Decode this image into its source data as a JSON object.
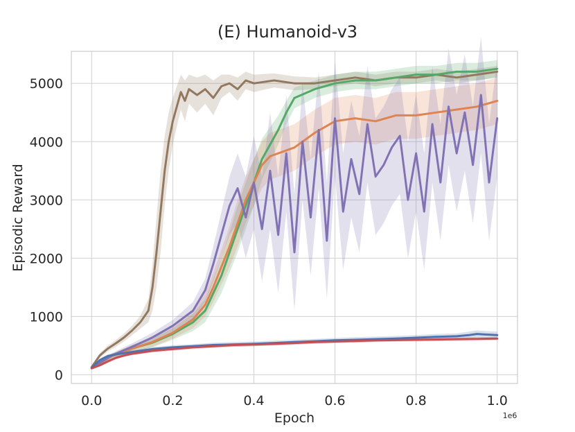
{
  "chart_data": {
    "type": "line",
    "title": "(E) Humanoid-v3",
    "xlabel": "Epoch",
    "ylabel": "Episodic Reward",
    "x_offset_label": "1e6",
    "xlim": [
      -0.05,
      1.05
    ],
    "ylim": [
      -150,
      5550
    ],
    "x_ticks": [
      0.0,
      0.2,
      0.4,
      0.6,
      0.8,
      1.0
    ],
    "x_tick_labels": [
      "0.0",
      "0.2",
      "0.4",
      "0.6",
      "0.8",
      "1.0"
    ],
    "y_ticks": [
      0,
      1000,
      2000,
      3000,
      4000,
      5000
    ],
    "y_tick_labels": [
      "0",
      "1000",
      "2000",
      "3000",
      "4000",
      "5000"
    ],
    "grid": true,
    "legend": "none",
    "series": [
      {
        "color": "#937860",
        "x": [
          0,
          0.02,
          0.04,
          0.06,
          0.08,
          0.1,
          0.12,
          0.14,
          0.15,
          0.16,
          0.17,
          0.18,
          0.19,
          0.2,
          0.21,
          0.22,
          0.23,
          0.24,
          0.26,
          0.28,
          0.3,
          0.32,
          0.34,
          0.36,
          0.38,
          0.4,
          0.45,
          0.5,
          0.55,
          0.6,
          0.65,
          0.7,
          0.75,
          0.8,
          0.85,
          0.9,
          0.95,
          1.0
        ],
        "y": [
          130,
          330,
          450,
          540,
          640,
          760,
          900,
          1100,
          1500,
          2100,
          2800,
          3500,
          4000,
          4350,
          4600,
          4850,
          4700,
          4900,
          4800,
          4900,
          4750,
          4950,
          5000,
          4900,
          5050,
          5000,
          5050,
          5000,
          5000,
          5050,
          5100,
          5050,
          5100,
          5100,
          5150,
          5100,
          5150,
          5200
        ],
        "spread": [
          20,
          40,
          50,
          60,
          70,
          80,
          110,
          200,
          400,
          600,
          700,
          600,
          500,
          400,
          350,
          300,
          350,
          250,
          300,
          250,
          300,
          200,
          150,
          200,
          150,
          150,
          120,
          120,
          100,
          100,
          100,
          100,
          100,
          100,
          100,
          100,
          100,
          100
        ]
      },
      {
        "color": "#55a868",
        "x": [
          0,
          0.05,
          0.1,
          0.15,
          0.2,
          0.25,
          0.28,
          0.3,
          0.32,
          0.34,
          0.36,
          0.38,
          0.4,
          0.42,
          0.44,
          0.46,
          0.48,
          0.5,
          0.55,
          0.6,
          0.65,
          0.7,
          0.75,
          0.8,
          0.85,
          0.9,
          0.95,
          1.0
        ],
        "y": [
          120,
          320,
          450,
          550,
          700,
          900,
          1100,
          1400,
          1700,
          2100,
          2500,
          2900,
          3300,
          3700,
          3950,
          4200,
          4500,
          4750,
          4900,
          5000,
          5050,
          5050,
          5100,
          5150,
          5150,
          5200,
          5200,
          5250
        ],
        "spread": [
          20,
          40,
          60,
          80,
          100,
          150,
          200,
          250,
          300,
          350,
          400,
          400,
          400,
          350,
          300,
          250,
          200,
          180,
          150,
          150,
          150,
          150,
          150,
          150,
          150,
          150,
          150,
          150
        ]
      },
      {
        "color": "#dd8452",
        "x": [
          0,
          0.05,
          0.1,
          0.15,
          0.2,
          0.25,
          0.28,
          0.3,
          0.32,
          0.34,
          0.36,
          0.38,
          0.4,
          0.42,
          0.44,
          0.46,
          0.5,
          0.55,
          0.6,
          0.65,
          0.7,
          0.75,
          0.8,
          0.85,
          0.9,
          0.95,
          1.0
        ],
        "y": [
          120,
          320,
          450,
          560,
          720,
          950,
          1200,
          1500,
          1850,
          2200,
          2600,
          3000,
          3300,
          3600,
          3750,
          3800,
          3900,
          4150,
          4350,
          4400,
          4350,
          4450,
          4450,
          4500,
          4550,
          4600,
          4700
        ],
        "spread": [
          20,
          40,
          60,
          80,
          100,
          150,
          200,
          250,
          300,
          350,
          400,
          400,
          400,
          400,
          400,
          400,
          400,
          400,
          400,
          400,
          400,
          400,
          400,
          400,
          400,
          400,
          400
        ]
      },
      {
        "color": "#8172b3",
        "x": [
          0,
          0.05,
          0.1,
          0.15,
          0.2,
          0.25,
          0.28,
          0.3,
          0.32,
          0.34,
          0.36,
          0.38,
          0.4,
          0.42,
          0.44,
          0.46,
          0.48,
          0.5,
          0.52,
          0.54,
          0.56,
          0.58,
          0.6,
          0.62,
          0.64,
          0.66,
          0.68,
          0.7,
          0.72,
          0.74,
          0.76,
          0.78,
          0.8,
          0.82,
          0.84,
          0.86,
          0.88,
          0.9,
          0.92,
          0.94,
          0.96,
          0.98,
          1.0
        ],
        "y": [
          120,
          330,
          480,
          640,
          840,
          1100,
          1450,
          1900,
          2400,
          2900,
          3200,
          2700,
          3300,
          2500,
          3500,
          2400,
          3800,
          2100,
          4000,
          2700,
          4200,
          2300,
          4400,
          2800,
          3700,
          3100,
          4300,
          3400,
          3600,
          3900,
          4100,
          3000,
          3800,
          2800,
          4300,
          3300,
          4600,
          3800,
          4500,
          3600,
          4800,
          3300,
          4400
        ],
        "spread": [
          20,
          40,
          60,
          80,
          100,
          150,
          200,
          300,
          400,
          500,
          600,
          700,
          800,
          900,
          1000,
          1000,
          1000,
          1000,
          1000,
          1000,
          1000,
          1000,
          1000,
          1000,
          1000,
          1000,
          1000,
          1000,
          1000,
          1000,
          1000,
          1000,
          1000,
          1000,
          1000,
          1000,
          1000,
          1000,
          1000,
          1000,
          1000,
          1000,
          1000
        ]
      },
      {
        "color": "#4c72b0",
        "x": [
          0,
          0.02,
          0.04,
          0.06,
          0.08,
          0.1,
          0.12,
          0.15,
          0.2,
          0.25,
          0.3,
          0.35,
          0.4,
          0.45,
          0.5,
          0.55,
          0.6,
          0.65,
          0.7,
          0.75,
          0.8,
          0.85,
          0.9,
          0.93,
          0.95,
          0.97,
          1.0
        ],
        "y": [
          120,
          250,
          320,
          350,
          370,
          390,
          410,
          440,
          470,
          490,
          510,
          520,
          530,
          545,
          560,
          575,
          590,
          600,
          610,
          620,
          635,
          650,
          660,
          680,
          700,
          690,
          680
        ],
        "spread": [
          15,
          25,
          30,
          30,
          30,
          30,
          30,
          35,
          35,
          35,
          40,
          40,
          40,
          40,
          40,
          40,
          40,
          45,
          45,
          45,
          45,
          50,
          50,
          60,
          60,
          60,
          60
        ]
      },
      {
        "color": "#c44e52",
        "x": [
          0,
          0.02,
          0.04,
          0.06,
          0.08,
          0.1,
          0.12,
          0.15,
          0.2,
          0.25,
          0.3,
          0.35,
          0.4,
          0.45,
          0.5,
          0.55,
          0.6,
          0.65,
          0.7,
          0.75,
          0.8,
          0.85,
          0.9,
          0.95,
          1.0
        ],
        "y": [
          110,
          160,
          230,
          290,
          330,
          360,
          380,
          410,
          440,
          470,
          490,
          510,
          520,
          530,
          545,
          560,
          570,
          580,
          590,
          595,
          600,
          605,
          610,
          615,
          620
        ],
        "spread": [
          10,
          20,
          25,
          25,
          25,
          25,
          25,
          30,
          30,
          30,
          30,
          30,
          30,
          30,
          30,
          30,
          30,
          30,
          30,
          30,
          30,
          30,
          30,
          30,
          30
        ]
      }
    ]
  }
}
